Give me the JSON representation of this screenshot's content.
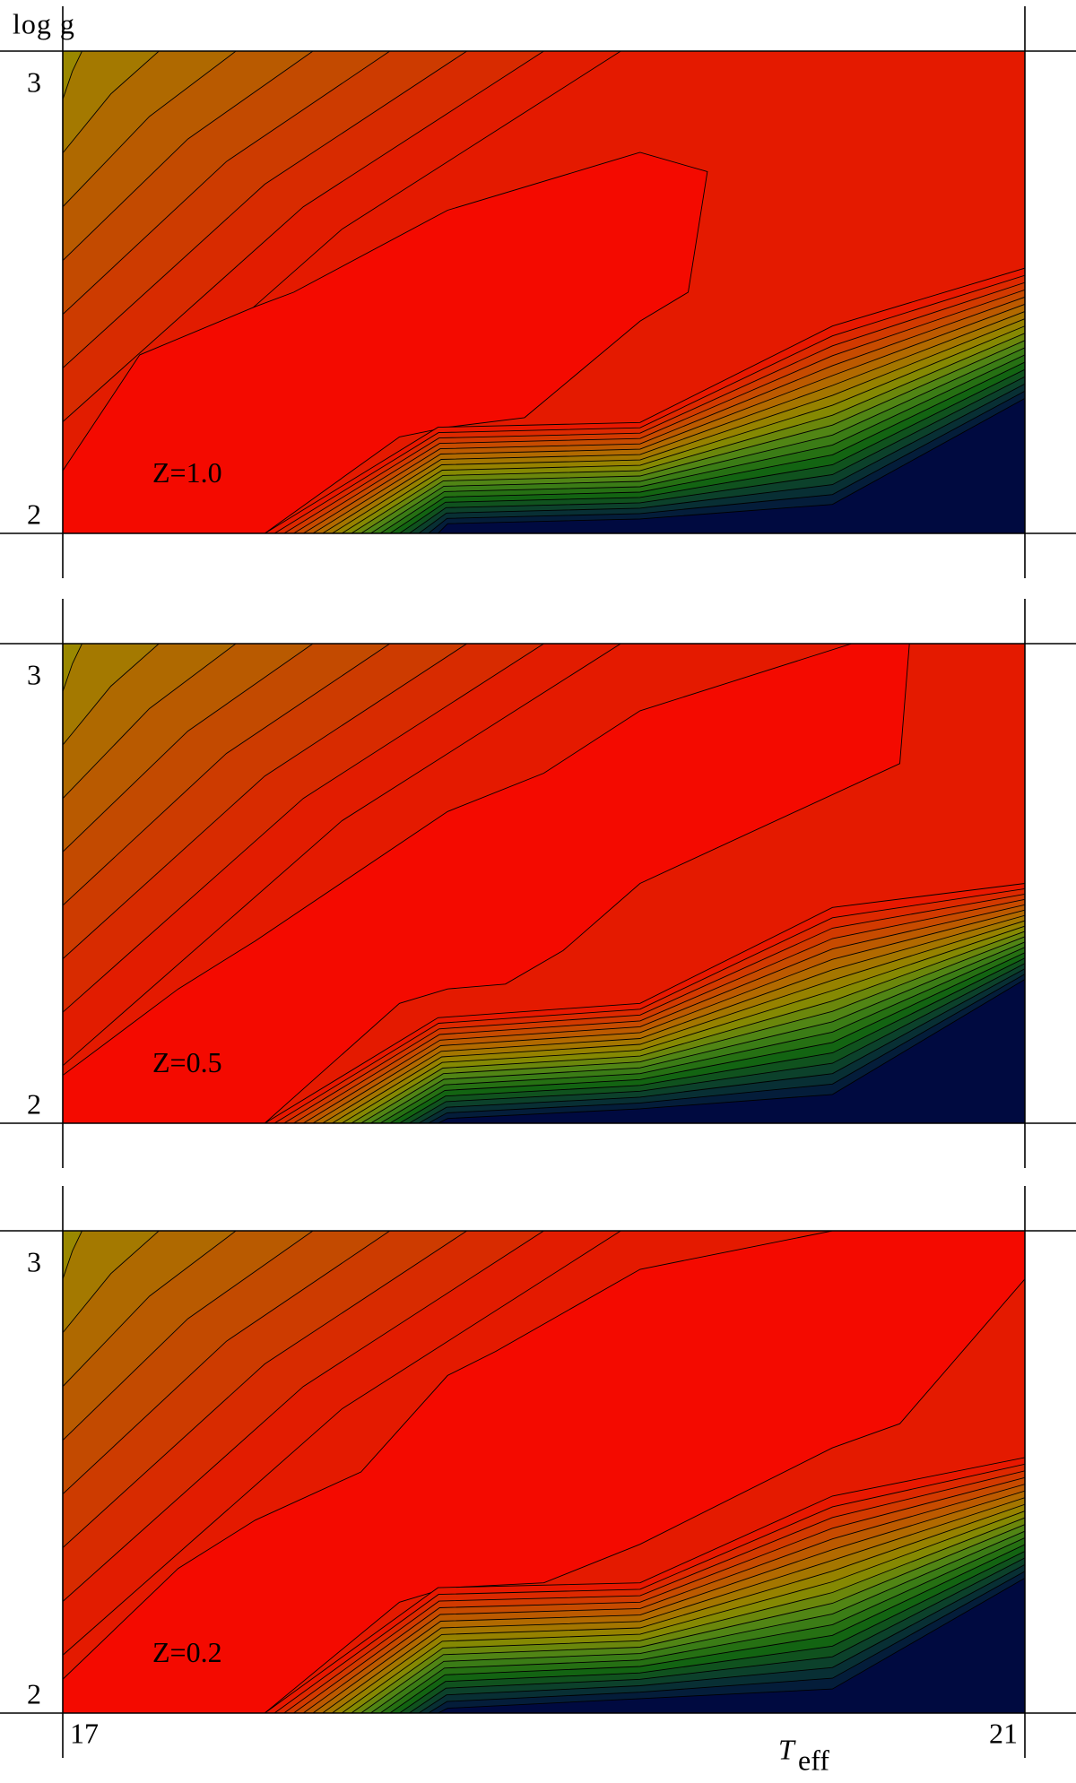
{
  "chart_data": [
    {
      "type": "contour",
      "annotation": "Z=1.0",
      "ylabel": "log g",
      "xlim": [
        17,
        21
      ],
      "ylim": [
        2,
        3
      ],
      "xticks": [
        17,
        21
      ],
      "yticks": [
        2,
        3
      ],
      "show_xtick_labels": false
    },
    {
      "type": "contour",
      "annotation": "Z=0.5",
      "xlim": [
        17,
        21
      ],
      "ylim": [
        2,
        3
      ],
      "xticks": [
        17,
        21
      ],
      "yticks": [
        2,
        3
      ],
      "show_xtick_labels": false
    },
    {
      "type": "contour",
      "annotation": "Z=0.2",
      "xlabel": "T",
      "xlabel_subscript": "eff",
      "xlim": [
        17,
        21
      ],
      "ylim": [
        2,
        3
      ],
      "xticks": [
        17,
        21
      ],
      "yticks": [
        2,
        3
      ],
      "show_xtick_labels": true
    }
  ]
}
